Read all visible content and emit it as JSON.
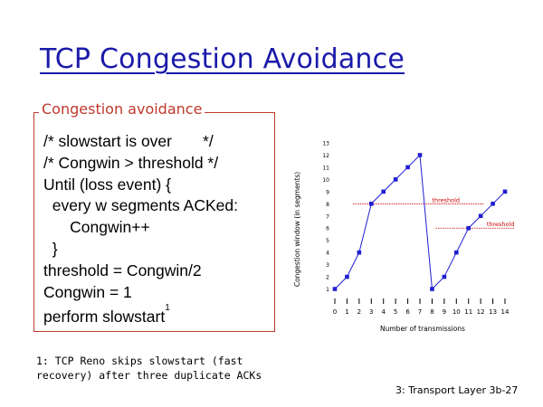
{
  "slide": {
    "title": "TCP Congestion Avoidance",
    "box_label": "Congestion avoidance",
    "code_lines": [
      "/* slowstart is over       */",
      "/* Congwin > threshold */",
      "Until (loss event) {",
      "  every w segments ACKed:",
      "      Congwin++",
      "  }",
      "threshold = Congwin/2",
      "Congwin = 1",
      "perform slowstart"
    ],
    "code_footnote_marker": "1",
    "footnote_line1": "1: TCP Reno skips slowstart (fast",
    "footnote_line2": "recovery) after three duplicate ACKs",
    "slide_number": "3: Transport Layer  3b-27"
  },
  "chart_data": {
    "type": "line",
    "xlabel": "Number of transmissions",
    "ylabel": "Congestion window (in segments)",
    "x": [
      0,
      1,
      2,
      3,
      4,
      5,
      6,
      7,
      8,
      9,
      10,
      11,
      12,
      13,
      14
    ],
    "series": [
      {
        "values": [
          1,
          2,
          4,
          8,
          9,
          10,
          11,
          12,
          1,
          2,
          4,
          6,
          7,
          8,
          9
        ]
      }
    ],
    "x_tick_labels": [
      "0",
      "1",
      "2",
      "3",
      "4",
      "5",
      "6",
      "7",
      "8",
      "9",
      "10",
      "11",
      "12",
      "13",
      "14"
    ],
    "y_tick_labels": [
      "1",
      "2",
      "3",
      "4",
      "5",
      "6",
      "7",
      "8",
      "9",
      "10",
      "11",
      "12",
      "13"
    ],
    "xlim": [
      0,
      14
    ],
    "ylim": [
      0,
      13
    ],
    "thresholds": [
      {
        "label": "threshold",
        "value": 8,
        "x_start": 1.5,
        "x_end": 12.3
      },
      {
        "label": "threshold",
        "value": 6,
        "x_start": 8.3,
        "x_end": 14.8
      }
    ],
    "line_color": "#1f1fd0",
    "threshold_color": "#cc0000",
    "grid": false
  }
}
